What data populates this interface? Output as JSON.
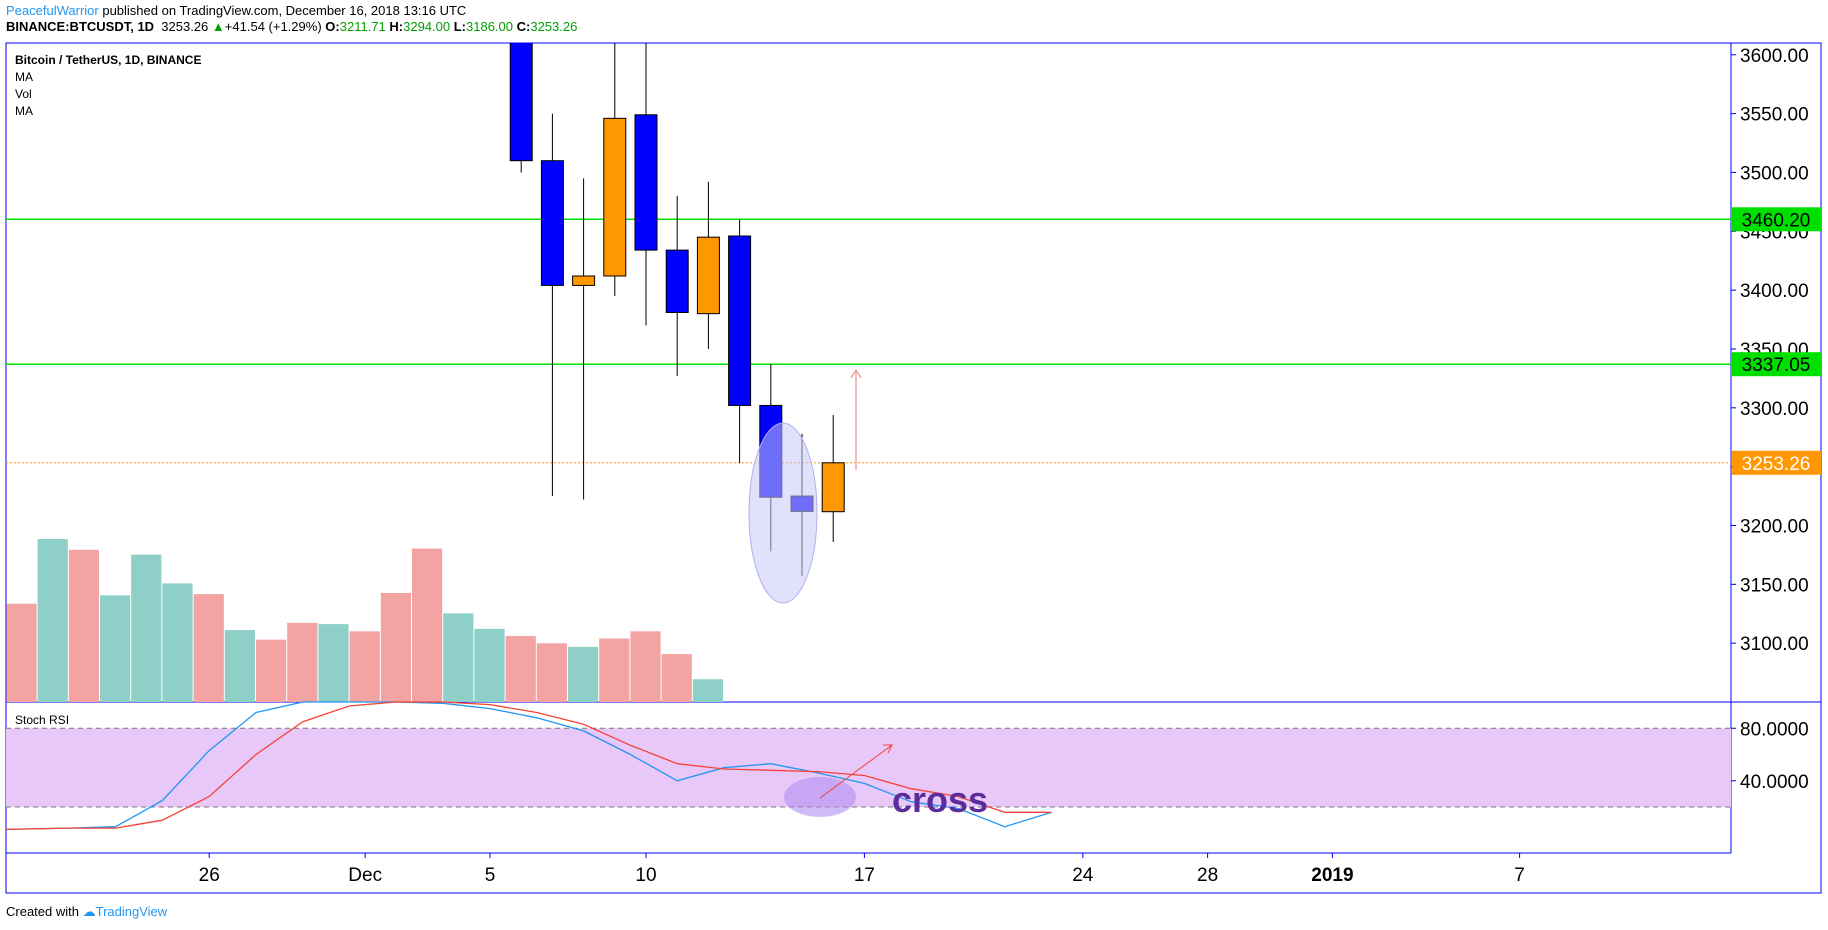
{
  "header": {
    "author": "PeacefulWarrior",
    "published_text": "published on TradingView.com, December 16, 2018 13:16 UTC",
    "symbol": "BINANCE:BTCUSDT, 1D",
    "last": "3253.26",
    "change_arrow": "▲",
    "change": "+41.54 (+1.29%)",
    "o_label": "O:",
    "o_value": "3211.71",
    "h_label": "H:",
    "h_value": "3294.00",
    "l_label": "L:",
    "l_value": "3186.00",
    "c_label": "C:",
    "c_value": "3253.26"
  },
  "legend": {
    "title": "Bitcoin / TetherUS, 1D, BINANCE",
    "items": [
      "MA",
      "Vol",
      "MA"
    ]
  },
  "footer": {
    "created_with": "Created with",
    "brand": "TradingView"
  },
  "colors": {
    "up": "#ff9800",
    "down": "#0000ff",
    "vol_up": "#8ecfc8",
    "vol_down": "#f4a3a3",
    "level": "#00e000",
    "last_price": "#ff9800",
    "k_line": "#2196f3",
    "d_line": "#f44336",
    "rsi_band": "#e8c8f8",
    "annotation": "#5b2d9c"
  },
  "chart_data": [
    {
      "type": "candlestick",
      "title": "Bitcoin / TetherUS, 1D, BINANCE",
      "ylim": [
        3050,
        3610
      ],
      "y_ticks": [
        "3100.00",
        "3150.00",
        "3200.00",
        "3250.00",
        "3300.00",
        "3350.00",
        "3400.00",
        "3450.00",
        "3500.00",
        "3550.00",
        "3600.00"
      ],
      "x_ticks": [
        "26",
        "Dec",
        "5",
        "10",
        "17",
        "24",
        "28",
        "2019",
        "7"
      ],
      "candles": [
        {
          "date": "2018-12-06",
          "open": 3700,
          "high": 3700,
          "low": 3500,
          "close": 3510
        },
        {
          "date": "2018-12-07",
          "open": 3510,
          "high": 3550,
          "low": 3225,
          "close": 3404
        },
        {
          "date": "2018-12-08",
          "open": 3404,
          "high": 3495,
          "low": 3222,
          "close": 3412
        },
        {
          "date": "2018-12-09",
          "open": 3412,
          "high": 3660,
          "low": 3395,
          "close": 3546
        },
        {
          "date": "2018-12-10",
          "open": 3549,
          "high": 3660,
          "low": 3370,
          "close": 3434
        },
        {
          "date": "2018-12-11",
          "open": 3434,
          "high": 3480,
          "low": 3327,
          "close": 3381
        },
        {
          "date": "2018-12-12",
          "open": 3380,
          "high": 3492,
          "low": 3350,
          "close": 3445
        },
        {
          "date": "2018-12-13",
          "open": 3446,
          "high": 3460,
          "low": 3253,
          "close": 3302
        },
        {
          "date": "2018-12-14",
          "open": 3302,
          "high": 3337,
          "low": 3178,
          "close": 3224
        },
        {
          "date": "2018-12-15",
          "open": 3225,
          "high": 3278,
          "low": 3157,
          "close": 3212
        },
        {
          "date": "2018-12-16",
          "open": 3211.71,
          "high": 3294,
          "low": 3186,
          "close": 3253.26
        }
      ],
      "levels": [
        {
          "value": 3460.2,
          "label": "3460.20"
        },
        {
          "value": 3337.05,
          "label": "3337.05"
        }
      ],
      "last_price": {
        "value": 3253.26,
        "label": "3253.26"
      },
      "volume": [
        {
          "date": "2018-11-20",
          "dir": "down",
          "value": 82
        },
        {
          "date": "2018-11-21",
          "dir": "up",
          "value": 136
        },
        {
          "date": "2018-11-22",
          "dir": "down",
          "value": 127
        },
        {
          "date": "2018-11-23",
          "dir": "up",
          "value": 89
        },
        {
          "date": "2018-11-24",
          "dir": "up",
          "value": 123
        },
        {
          "date": "2018-11-25",
          "dir": "up",
          "value": 99
        },
        {
          "date": "2018-11-26",
          "dir": "down",
          "value": 90
        },
        {
          "date": "2018-11-27",
          "dir": "up",
          "value": 60
        },
        {
          "date": "2018-11-28",
          "dir": "down",
          "value": 52
        },
        {
          "date": "2018-11-29",
          "dir": "down",
          "value": 66
        },
        {
          "date": "2018-11-30",
          "dir": "up",
          "value": 65
        },
        {
          "date": "2018-12-01",
          "dir": "down",
          "value": 59
        },
        {
          "date": "2018-12-02",
          "dir": "down",
          "value": 91
        },
        {
          "date": "2018-12-03",
          "dir": "down",
          "value": 128
        },
        {
          "date": "2018-12-04",
          "dir": "up",
          "value": 74
        },
        {
          "date": "2018-12-05",
          "dir": "up",
          "value": 61
        },
        {
          "date": "2018-12-06",
          "dir": "down",
          "value": 55
        },
        {
          "date": "2018-12-07",
          "dir": "down",
          "value": 49
        },
        {
          "date": "2018-12-08",
          "dir": "up",
          "value": 46
        },
        {
          "date": "2018-12-09",
          "dir": "down",
          "value": 53
        },
        {
          "date": "2018-12-10",
          "dir": "down",
          "value": 59
        },
        {
          "date": "2018-12-11",
          "dir": "down",
          "value": 40
        },
        {
          "date": "2018-12-12",
          "dir": "up",
          "value": 19
        }
      ]
    },
    {
      "type": "line",
      "title": "Stoch RSI",
      "ylim": [
        -15,
        100
      ],
      "y_ticks": [
        "80.0000",
        "40.0000"
      ],
      "bands": [
        80,
        20
      ],
      "series": [
        {
          "name": "K",
          "values": [
            3,
            4,
            5,
            25,
            63,
            92,
            100,
            100,
            100,
            99,
            95,
            88,
            78,
            60,
            40,
            50,
            53,
            46,
            38,
            24,
            19,
            5,
            16
          ]
        },
        {
          "name": "D",
          "values": [
            3,
            4,
            4,
            10,
            28,
            60,
            85,
            97,
            100,
            100,
            98,
            92,
            83,
            67,
            53,
            49,
            48,
            47,
            44,
            34,
            28,
            16,
            16
          ]
        }
      ],
      "annotation": "cross"
    }
  ]
}
